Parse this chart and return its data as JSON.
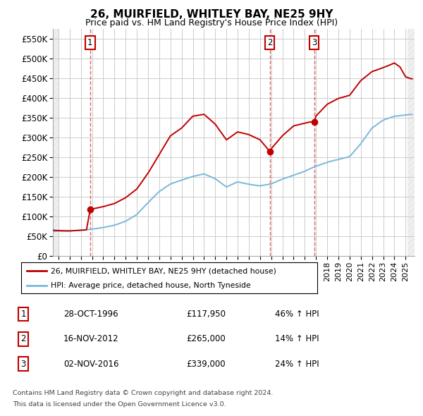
{
  "title": "26, MUIRFIELD, WHITLEY BAY, NE25 9HY",
  "subtitle": "Price paid vs. HM Land Registry's House Price Index (HPI)",
  "ylim": [
    0,
    575000
  ],
  "yticks": [
    0,
    50000,
    100000,
    150000,
    200000,
    250000,
    300000,
    350000,
    400000,
    450000,
    500000,
    550000
  ],
  "ytick_labels": [
    "£0",
    "£50K",
    "£100K",
    "£150K",
    "£200K",
    "£250K",
    "£300K",
    "£350K",
    "£400K",
    "£450K",
    "£500K",
    "£550K"
  ],
  "hpi_color": "#7ab8d9",
  "price_color": "#c00000",
  "background_color": "#ffffff",
  "grid_color": "#cccccc",
  "legend_label_price": "26, MUIRFIELD, WHITLEY BAY, NE25 9HY (detached house)",
  "legend_label_hpi": "HPI: Average price, detached house, North Tyneside",
  "transactions": [
    {
      "num": 1,
      "date": "28-OCT-1996",
      "price": 117950,
      "pct": "46% ↑ HPI",
      "year": 1996.83
    },
    {
      "num": 2,
      "date": "16-NOV-2012",
      "price": 265000,
      "pct": "14% ↑ HPI",
      "year": 2012.87
    },
    {
      "num": 3,
      "date": "02-NOV-2016",
      "price": 339000,
      "pct": "24% ↑ HPI",
      "year": 2016.84
    }
  ],
  "footer1": "Contains HM Land Registry data © Crown copyright and database right 2024.",
  "footer2": "This data is licensed under the Open Government Licence v3.0.",
  "xlim_start": 1993.5,
  "xlim_end": 2025.8,
  "hpi_keypoints": {
    "1993.5": 62000,
    "1994": 63000,
    "1995": 63500,
    "1996": 65000,
    "1997": 68000,
    "1998": 72000,
    "1999": 78000,
    "2000": 88000,
    "2001": 105000,
    "2002": 135000,
    "2003": 163000,
    "2004": 182000,
    "2005": 192000,
    "2006": 202000,
    "2007": 208000,
    "2008": 196000,
    "2009": 175000,
    "2010": 188000,
    "2011": 182000,
    "2012": 178000,
    "2013": 183000,
    "2014": 195000,
    "2015": 205000,
    "2016": 215000,
    "2017": 228000,
    "2018": 238000,
    "2019": 245000,
    "2020": 252000,
    "2021": 285000,
    "2022": 325000,
    "2023": 345000,
    "2024": 355000,
    "2025.5": 360000
  },
  "price_keypoints": {
    "1993.5": 65000,
    "1994": 64000,
    "1995": 63000,
    "1996.5": 66000,
    "1996.83": 117950,
    "1997.0": 119000,
    "1998": 125000,
    "1999": 133000,
    "2000": 148000,
    "2001": 170000,
    "2002": 210000,
    "2003": 258000,
    "2004": 305000,
    "2005": 325000,
    "2006": 355000,
    "2007": 360000,
    "2008": 335000,
    "2009": 295000,
    "2010": 315000,
    "2011": 308000,
    "2012": 295000,
    "2012.87": 265000,
    "2013": 272000,
    "2014": 305000,
    "2015": 330000,
    "2016.5": 340000,
    "2016.84": 339000,
    "2017": 355000,
    "2018": 385000,
    "2019": 400000,
    "2020": 408000,
    "2021": 445000,
    "2022": 468000,
    "2023": 478000,
    "2024": 490000,
    "2024.5": 480000,
    "2025": 455000,
    "2025.5": 450000
  }
}
